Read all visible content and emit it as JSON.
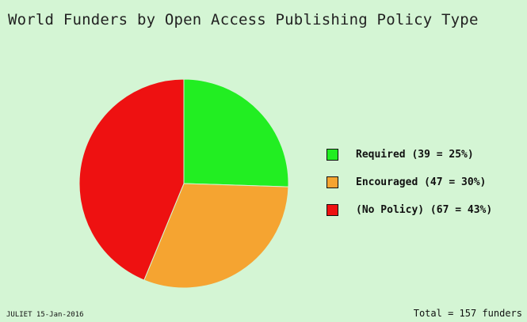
{
  "chart_data": {
    "type": "pie",
    "title": "World Funders by Open Access Publishing Policy Type",
    "slices": [
      {
        "label": "Required (39 = 25%)",
        "value": 39,
        "color": "#22ee22"
      },
      {
        "label": "Encouraged (47 = 30%)",
        "value": 47,
        "color": "#f5a431"
      },
      {
        "label": "(No Policy) (67 = 43%)",
        "value": 67,
        "color": "#ee1111"
      }
    ],
    "legend_position": "right",
    "footer_left": "JULIET 15-Jan-2016",
    "footer_right": "Total = 157 funders"
  }
}
